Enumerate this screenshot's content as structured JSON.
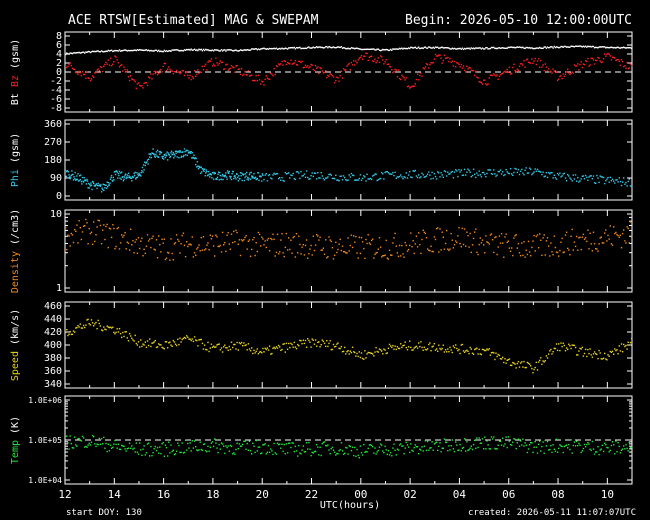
{
  "header": {
    "title": "ACE RTSW[Estimated] MAG & SWEPAM",
    "begin": "Begin: 2026-05-10 12:00:00UTC"
  },
  "footer": {
    "start_doy": "start DOY: 130",
    "created": "created: 2026-05-11 11:07:07UTC",
    "xlabel": "UTC(hours)"
  },
  "colors": {
    "background": "#000000",
    "frame": "#ffffff",
    "bt": "#ffffff",
    "bz": "#ff2020",
    "phi": "#33c8e6",
    "density": "#f08a1e",
    "speed": "#e6d21e",
    "temp": "#22e63a"
  },
  "chart_data": [
    {
      "type": "scatter",
      "panel": "mag_field",
      "ylabel_parts": [
        "Bt",
        "Bz",
        "(gsm)"
      ],
      "ylabel_colors": [
        "#ffffff",
        "#ff2020",
        "#ffffff"
      ],
      "ylim": [
        -8,
        8
      ],
      "yticks": [
        -8,
        -6,
        -4,
        -2,
        0,
        2,
        4,
        6,
        8
      ],
      "ytick_labels": [
        "-8",
        "-6",
        "-4",
        "-2",
        "0",
        "2",
        "4",
        "6",
        "8"
      ],
      "reference_line": 0,
      "x": [
        12.0,
        13.0,
        14.0,
        15.0,
        16.0,
        17.0,
        18.0,
        19.0,
        20.0,
        21.0,
        22.0,
        23.0,
        24.0,
        25.0,
        26.0,
        27.0,
        28.0,
        29.0,
        30.0,
        31.0,
        32.0,
        33.0,
        34.0,
        35.0
      ],
      "series": [
        {
          "name": "Bt",
          "color": "#ffffff",
          "values": [
            4.2,
            4.6,
            4.9,
            5.0,
            4.8,
            5.1,
            5.0,
            4.9,
            5.3,
            5.4,
            5.6,
            5.7,
            5.2,
            5.0,
            5.5,
            5.6,
            5.3,
            5.4,
            5.6,
            5.5,
            5.7,
            5.8,
            5.6,
            5.5
          ]
        },
        {
          "name": "Bz",
          "color": "#ff2020",
          "values": [
            2.0,
            -1.0,
            3.0,
            -3.5,
            1.5,
            -1.0,
            2.5,
            0.5,
            -2.0,
            3.0,
            1.0,
            -1.5,
            4.0,
            2.5,
            -3.0,
            3.5,
            2.0,
            -2.0,
            0.5,
            3.0,
            -1.0,
            2.0,
            3.5,
            1.0
          ]
        }
      ]
    },
    {
      "type": "scatter",
      "panel": "phi",
      "ylabel_parts": [
        "Phi",
        "(gsm)"
      ],
      "ylabel_colors": [
        "#33c8e6",
        "#ffffff"
      ],
      "ylim": [
        0,
        360
      ],
      "yticks": [
        0,
        90,
        180,
        270,
        360
      ],
      "ytick_labels": [
        "0",
        "90",
        "180",
        "270",
        "360"
      ],
      "x": [
        12.0,
        12.5,
        13.0,
        13.5,
        14.0,
        14.5,
        15.0,
        15.5,
        16.0,
        16.5,
        17.0,
        17.5,
        18.0,
        18.5,
        19.0,
        19.5,
        20.0,
        21.0,
        22.0,
        23.0,
        24.0,
        25.0,
        26.0,
        27.0,
        28.0,
        29.0,
        30.0,
        31.0,
        32.0,
        33.0,
        34.0,
        35.0
      ],
      "series": [
        {
          "name": "Phi",
          "color": "#33c8e6",
          "values": [
            120,
            95,
            60,
            40,
            110,
            95,
            110,
            220,
            200,
            210,
            230,
            130,
            100,
            110,
            100,
            105,
            95,
            100,
            110,
            100,
            95,
            105,
            110,
            110,
            115,
            120,
            120,
            125,
            100,
            90,
            80,
            70
          ]
        }
      ]
    },
    {
      "type": "scatter",
      "panel": "density",
      "ylabel_parts": [
        "Density",
        "(/cm3)"
      ],
      "ylabel_colors": [
        "#f08a1e",
        "#ffffff"
      ],
      "yscale": "log",
      "ylim": [
        1,
        10
      ],
      "ytick_labels": [
        "1",
        "10"
      ],
      "x": [
        12.0,
        13.0,
        14.0,
        15.0,
        16.0,
        17.0,
        18.0,
        19.0,
        20.0,
        21.0,
        22.0,
        23.0,
        24.0,
        25.0,
        26.0,
        27.0,
        28.0,
        29.0,
        30.0,
        31.0,
        32.0,
        33.0,
        34.0,
        35.0
      ],
      "series": [
        {
          "name": "Density",
          "color": "#f08a1e",
          "values": [
            5.0,
            6.0,
            5.0,
            4.0,
            3.5,
            4.0,
            4.0,
            4.2,
            3.8,
            4.0,
            3.8,
            3.6,
            3.6,
            3.7,
            4.0,
            4.5,
            5.0,
            4.0,
            3.8,
            3.6,
            4.0,
            4.5,
            5.0,
            5.5
          ]
        }
      ]
    },
    {
      "type": "scatter",
      "panel": "speed",
      "ylabel_parts": [
        "Speed",
        "(km/s)"
      ],
      "ylabel_colors": [
        "#e6d21e",
        "#ffffff"
      ],
      "ylim": [
        340,
        460
      ],
      "yticks": [
        340,
        360,
        380,
        400,
        420,
        440,
        460
      ],
      "ytick_labels": [
        "340",
        "360",
        "380",
        "400",
        "420",
        "440",
        "460"
      ],
      "x": [
        12.0,
        13.0,
        14.0,
        15.0,
        16.0,
        17.0,
        18.0,
        19.0,
        20.0,
        21.0,
        22.0,
        23.0,
        24.0,
        25.0,
        26.0,
        27.0,
        28.0,
        29.0,
        30.0,
        31.0,
        32.0,
        33.0,
        34.0,
        35.0
      ],
      "series": [
        {
          "name": "Speed",
          "color": "#e6d21e",
          "values": [
            420,
            435,
            425,
            405,
            400,
            410,
            395,
            400,
            390,
            398,
            405,
            400,
            385,
            395,
            400,
            398,
            395,
            392,
            375,
            365,
            400,
            390,
            385,
            405
          ]
        }
      ]
    },
    {
      "type": "scatter",
      "panel": "temp",
      "ylabel_parts": [
        "Temp",
        "(K)"
      ],
      "ylabel_colors": [
        "#22e63a",
        "#ffffff"
      ],
      "yscale": "log",
      "ylim": [
        10000,
        1000000
      ],
      "ytick_labels": [
        "1.0E+04",
        "1.0E+05",
        "1.0E+06"
      ],
      "reference_line": 100000,
      "x": [
        12.0,
        13.0,
        14.0,
        15.0,
        16.0,
        17.0,
        18.0,
        19.0,
        20.0,
        21.0,
        22.0,
        23.0,
        24.0,
        25.0,
        26.0,
        27.0,
        28.0,
        29.0,
        30.0,
        31.0,
        32.0,
        33.0,
        34.0,
        35.0
      ],
      "series": [
        {
          "name": "Temp",
          "color": "#22e63a",
          "values": [
            90000,
            100000,
            70000,
            60000,
            60000,
            70000,
            75000,
            65000,
            70000,
            60000,
            62000,
            65000,
            55000,
            60000,
            65000,
            70000,
            80000,
            90000,
            85000,
            70000,
            75000,
            70000,
            65000,
            70000
          ]
        }
      ]
    }
  ],
  "x_axis": {
    "range": [
      12,
      35
    ],
    "major_ticks": [
      12,
      14,
      16,
      18,
      20,
      22,
      24,
      26,
      28,
      30,
      32,
      34
    ],
    "tick_labels": [
      "12",
      "14",
      "16",
      "18",
      "20",
      "22",
      "00",
      "02",
      "04",
      "06",
      "08",
      "10"
    ]
  }
}
